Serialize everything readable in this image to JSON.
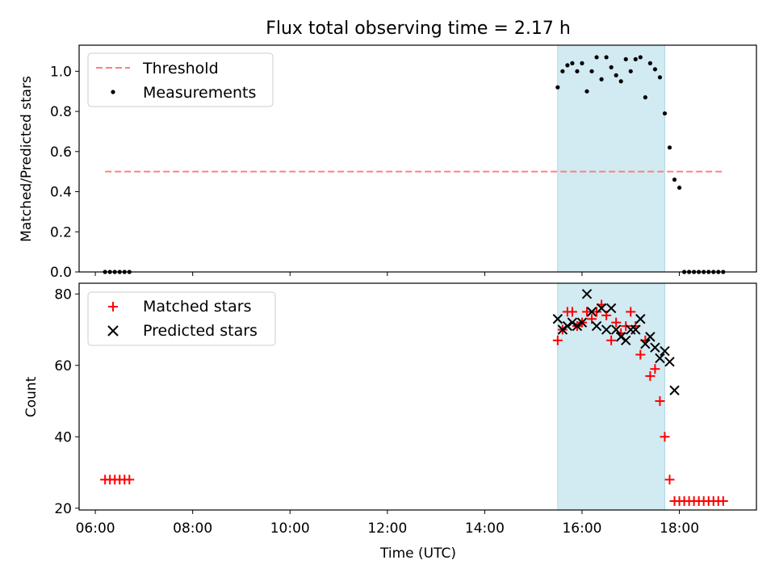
{
  "title": "Flux total observing time = 2.17 h",
  "xlabel": "Time (UTC)",
  "x_ticks": [
    "06:00",
    "08:00",
    "10:00",
    "12:00",
    "14:00",
    "16:00",
    "18:00"
  ],
  "colors": {
    "threshold": "#ff7f7f",
    "measurements": "#000000",
    "matched": "#ff0000",
    "predicted": "#000000",
    "span": "#add8e6"
  },
  "chart_data": [
    {
      "type": "scatter",
      "panel": "top",
      "ylabel": "Matched/Predicted stars",
      "xlim": [
        "05:40",
        "19:35"
      ],
      "ylim": [
        0,
        1.13
      ],
      "y_ticks": [
        "0.0",
        "0.2",
        "0.4",
        "0.6",
        "0.8",
        "1.0"
      ],
      "highlight_span": [
        "15:30",
        "17:42"
      ],
      "legend": {
        "placement": "upper left",
        "entries": [
          "Threshold",
          "Measurements"
        ]
      },
      "threshold": {
        "name": "Threshold",
        "y": 0.5,
        "x": [
          "06:12",
          "18:54"
        ]
      },
      "series": [
        {
          "name": "Measurements",
          "x": [
            "06:12",
            "06:18",
            "06:24",
            "06:30",
            "06:36",
            "06:42",
            "15:30",
            "15:36",
            "15:42",
            "15:48",
            "15:54",
            "16:00",
            "16:06",
            "16:12",
            "16:18",
            "16:24",
            "16:30",
            "16:36",
            "16:42",
            "16:48",
            "16:54",
            "17:00",
            "17:06",
            "17:12",
            "17:18",
            "17:24",
            "17:30",
            "17:36",
            "17:42",
            "17:48",
            "17:54",
            "18:00",
            "18:06",
            "18:12",
            "18:18",
            "18:24",
            "18:30",
            "18:36",
            "18:42",
            "18:48",
            "18:54"
          ],
          "y": [
            0,
            0,
            0,
            0,
            0,
            0,
            0.92,
            1.0,
            1.03,
            1.04,
            1.0,
            1.04,
            0.9,
            1.0,
            1.07,
            0.96,
            1.07,
            1.02,
            0.98,
            0.95,
            1.06,
            1.0,
            1.06,
            1.07,
            0.87,
            1.04,
            1.01,
            0.97,
            0.79,
            0.62,
            0.46,
            0.42,
            0,
            0,
            0,
            0,
            0,
            0,
            0,
            0,
            0
          ]
        }
      ]
    },
    {
      "type": "scatter",
      "panel": "bottom",
      "ylabel": "Count",
      "xlim": [
        "05:40",
        "19:35"
      ],
      "ylim": [
        19.5,
        83
      ],
      "y_ticks": [
        "20",
        "40",
        "60",
        "80"
      ],
      "highlight_span": [
        "15:30",
        "17:42"
      ],
      "legend": {
        "placement": "upper left",
        "entries": [
          "Matched stars",
          "Predicted stars"
        ]
      },
      "series": [
        {
          "name": "Matched stars",
          "marker": "+",
          "x": [
            "06:12",
            "06:18",
            "06:24",
            "06:30",
            "06:36",
            "06:42",
            "15:30",
            "15:36",
            "15:42",
            "15:48",
            "15:54",
            "16:00",
            "16:06",
            "16:12",
            "16:18",
            "16:24",
            "16:30",
            "16:36",
            "16:42",
            "16:48",
            "16:54",
            "17:00",
            "17:06",
            "17:12",
            "17:18",
            "17:24",
            "17:30",
            "17:36",
            "17:42",
            "17:48",
            "17:54",
            "18:00",
            "18:06",
            "18:12",
            "18:18",
            "18:24",
            "18:30",
            "18:36",
            "18:42",
            "18:48",
            "18:54"
          ],
          "y": [
            28,
            28,
            28,
            28,
            28,
            28,
            67,
            70,
            75,
            75,
            71,
            72,
            75,
            73,
            75,
            77,
            74,
            67,
            72,
            69,
            71,
            75,
            71,
            63,
            67,
            57,
            59,
            50,
            40,
            28,
            22,
            22,
            22,
            22,
            22,
            22,
            22,
            22,
            22,
            22,
            22
          ]
        },
        {
          "name": "Predicted stars",
          "marker": "x",
          "x": [
            "15:30",
            "15:36",
            "15:42",
            "15:48",
            "15:54",
            "16:00",
            "16:06",
            "16:12",
            "16:18",
            "16:24",
            "16:30",
            "16:36",
            "16:42",
            "16:48",
            "16:54",
            "17:00",
            "17:06",
            "17:12",
            "17:18",
            "17:24",
            "17:30",
            "17:36",
            "17:42",
            "17:48",
            "17:54"
          ],
          "y": [
            73,
            70,
            71,
            72,
            71,
            72,
            80,
            75,
            71,
            76,
            70,
            76,
            70,
            68,
            67,
            70,
            70,
            73,
            66,
            68,
            65,
            62,
            64,
            61,
            53
          ]
        }
      ]
    }
  ]
}
